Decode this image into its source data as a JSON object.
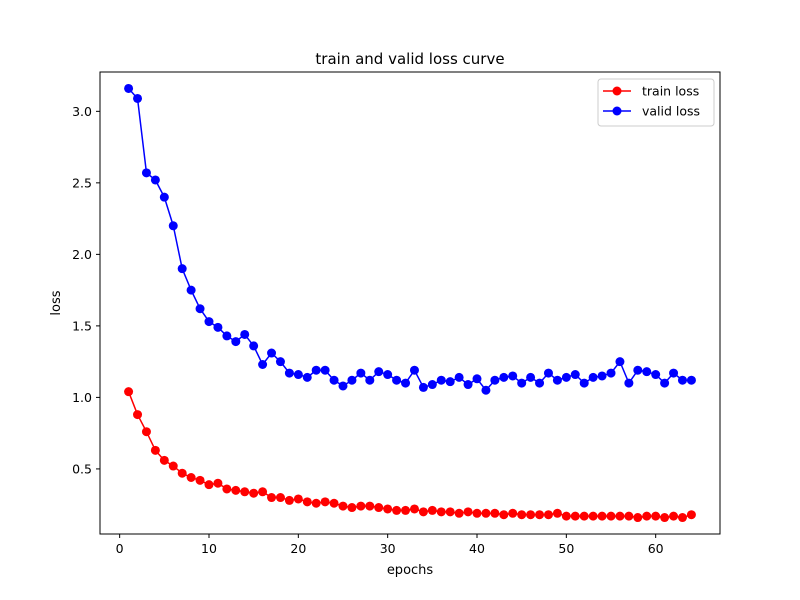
{
  "chart_data": {
    "type": "line",
    "title": "train and valid loss curve",
    "xlabel": "epochs",
    "ylabel": "loss",
    "xlim": [
      -2.2,
      67.2
    ],
    "ylim": [
      0.045,
      3.275
    ],
    "xticks": [
      0,
      10,
      20,
      30,
      40,
      50,
      60
    ],
    "xtick_labels": [
      "0",
      "10",
      "20",
      "30",
      "40",
      "50",
      "60"
    ],
    "yticks": [
      0.5,
      1.0,
      1.5,
      2.0,
      2.5,
      3.0
    ],
    "ytick_labels": [
      "0.5",
      "1.0",
      "1.5",
      "2.0",
      "2.5",
      "3.0"
    ],
    "grid": false,
    "legend_position": "top-right",
    "x": [
      1,
      2,
      3,
      4,
      5,
      6,
      7,
      8,
      9,
      10,
      11,
      12,
      13,
      14,
      15,
      16,
      17,
      18,
      19,
      20,
      21,
      22,
      23,
      24,
      25,
      26,
      27,
      28,
      29,
      30,
      31,
      32,
      33,
      34,
      35,
      36,
      37,
      38,
      39,
      40,
      41,
      42,
      43,
      44,
      45,
      46,
      47,
      48,
      49,
      50,
      51,
      52,
      53,
      54,
      55,
      56,
      57,
      58,
      59,
      60,
      61,
      62,
      63,
      64
    ],
    "series": [
      {
        "name": "train loss",
        "color": "#ff0000",
        "values": [
          1.04,
          0.88,
          0.76,
          0.63,
          0.56,
          0.52,
          0.47,
          0.44,
          0.42,
          0.39,
          0.4,
          0.36,
          0.35,
          0.34,
          0.33,
          0.34,
          0.3,
          0.3,
          0.28,
          0.29,
          0.27,
          0.26,
          0.27,
          0.26,
          0.24,
          0.23,
          0.24,
          0.24,
          0.23,
          0.22,
          0.21,
          0.21,
          0.22,
          0.2,
          0.21,
          0.2,
          0.2,
          0.19,
          0.2,
          0.19,
          0.19,
          0.19,
          0.18,
          0.19,
          0.18,
          0.18,
          0.18,
          0.18,
          0.19,
          0.17,
          0.17,
          0.17,
          0.17,
          0.17,
          0.17,
          0.17,
          0.17,
          0.16,
          0.17,
          0.17,
          0.16,
          0.17,
          0.16,
          0.18
        ]
      },
      {
        "name": "valid loss",
        "color": "#0000ff",
        "values": [
          3.16,
          3.09,
          2.57,
          2.52,
          2.4,
          2.2,
          1.9,
          1.75,
          1.62,
          1.53,
          1.49,
          1.43,
          1.39,
          1.44,
          1.36,
          1.23,
          1.31,
          1.25,
          1.17,
          1.16,
          1.14,
          1.19,
          1.19,
          1.12,
          1.08,
          1.12,
          1.17,
          1.12,
          1.18,
          1.16,
          1.12,
          1.1,
          1.19,
          1.07,
          1.09,
          1.12,
          1.11,
          1.14,
          1.09,
          1.13,
          1.05,
          1.12,
          1.14,
          1.15,
          1.1,
          1.14,
          1.1,
          1.17,
          1.12,
          1.14,
          1.16,
          1.1,
          1.14,
          1.15,
          1.17,
          1.25,
          1.1,
          1.19,
          1.18,
          1.16,
          1.1,
          1.17,
          1.12,
          1.12
        ]
      }
    ]
  }
}
